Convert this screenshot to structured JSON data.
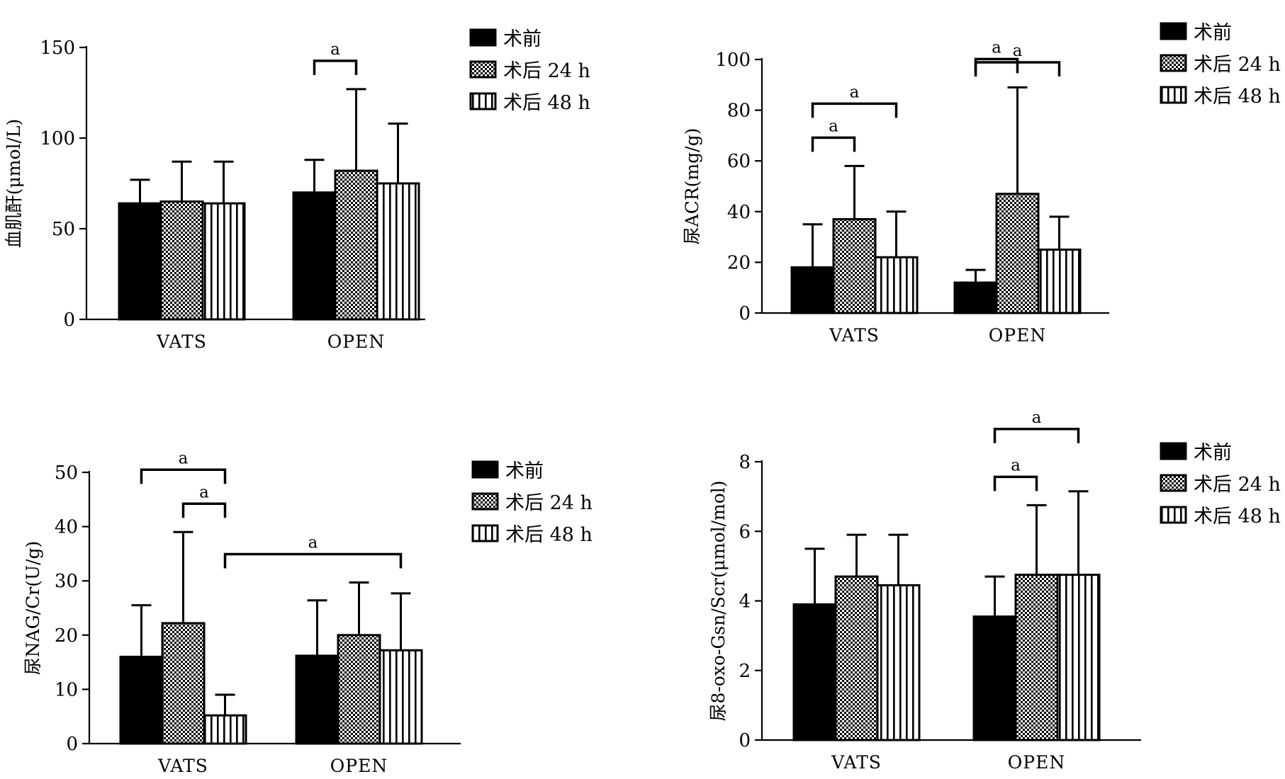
{
  "colors": {
    "ink": "#000000",
    "background": "#ffffff"
  },
  "legend": [
    "术前",
    "术后 24 h",
    "术后 48 h"
  ],
  "chart_data": [
    {
      "type": "bar",
      "ylabel": "血肌酐(μmol/L)",
      "categories": [
        "VATS",
        "OPEN"
      ],
      "ylim": [
        0,
        150
      ],
      "yticks": [
        0,
        50,
        100,
        150
      ],
      "series": [
        {
          "name": "术前",
          "pattern": "solid",
          "values": [
            64,
            70
          ],
          "errors": [
            13,
            18
          ]
        },
        {
          "name": "术后 24 h",
          "pattern": "checker",
          "values": [
            65,
            82
          ],
          "errors": [
            22,
            45
          ]
        },
        {
          "name": "术后 48 h",
          "pattern": "vstripe",
          "values": [
            64,
            75
          ],
          "errors": [
            23,
            33
          ]
        }
      ],
      "significance": [
        {
          "label": "a",
          "category": "OPEN",
          "from": 0,
          "to": 1
        }
      ]
    },
    {
      "type": "bar",
      "ylabel": "尿ACR(mg/g)",
      "categories": [
        "VATS",
        "OPEN"
      ],
      "ylim": [
        0,
        100
      ],
      "yticks": [
        0,
        20,
        40,
        60,
        80,
        100
      ],
      "series": [
        {
          "name": "术前",
          "pattern": "solid",
          "values": [
            18,
            12
          ],
          "errors": [
            17,
            5
          ]
        },
        {
          "name": "术后 24 h",
          "pattern": "checker",
          "values": [
            37,
            47
          ],
          "errors": [
            21,
            42
          ]
        },
        {
          "name": "术后 48 h",
          "pattern": "vstripe",
          "values": [
            22,
            25
          ],
          "errors": [
            18,
            13
          ]
        }
      ],
      "significance": [
        {
          "label": "a",
          "category": "VATS",
          "from": 0,
          "to": 1
        },
        {
          "label": "a",
          "category": "VATS",
          "from": 0,
          "to": 2
        },
        {
          "label": "a",
          "category": "OPEN",
          "from": 0,
          "to": 1
        },
        {
          "label": "a",
          "category": "OPEN",
          "from": 0,
          "to": 2
        }
      ]
    },
    {
      "type": "bar",
      "ylabel": "尿NAG/Cr(U/g)",
      "categories": [
        "VATS",
        "OPEN"
      ],
      "ylim": [
        0,
        50
      ],
      "yticks": [
        0,
        10,
        20,
        30,
        40,
        50
      ],
      "series": [
        {
          "name": "术前",
          "pattern": "solid",
          "values": [
            16,
            16.2
          ],
          "errors": [
            9.5,
            10.2
          ]
        },
        {
          "name": "术后 24 h",
          "pattern": "checker",
          "values": [
            22.2,
            20
          ],
          "errors": [
            16.8,
            9.7
          ]
        },
        {
          "name": "术后 48 h",
          "pattern": "vstripe",
          "values": [
            5.2,
            17.2
          ],
          "errors": [
            3.8,
            10.5
          ]
        }
      ],
      "significance": [
        {
          "label": "a",
          "category": "VATS",
          "from": 0,
          "to": 2
        },
        {
          "label": "a",
          "category": "VATS",
          "from": 1,
          "to": 2
        },
        {
          "label": "a",
          "category": "VATS",
          "from": 2,
          "to": 2,
          "to_category": "OPEN"
        }
      ]
    },
    {
      "type": "bar",
      "ylabel": "尿8-oxo-Gsn/Scr(μmol/mol)",
      "categories": [
        "VATS",
        "OPEN"
      ],
      "ylim": [
        0,
        8
      ],
      "yticks": [
        0,
        2,
        4,
        6,
        8
      ],
      "series": [
        {
          "name": "术前",
          "pattern": "solid",
          "values": [
            3.9,
            3.55
          ],
          "errors": [
            1.6,
            1.15
          ]
        },
        {
          "name": "术后 24 h",
          "pattern": "checker",
          "values": [
            4.7,
            4.75
          ],
          "errors": [
            1.2,
            2.0
          ]
        },
        {
          "name": "术后 48 h",
          "pattern": "vstripe",
          "values": [
            4.45,
            4.75
          ],
          "errors": [
            1.45,
            2.4
          ]
        }
      ],
      "significance": [
        {
          "label": "a",
          "category": "OPEN",
          "from": 0,
          "to": 1
        },
        {
          "label": "a",
          "category": "OPEN",
          "from": 0,
          "to": 2
        }
      ]
    }
  ]
}
